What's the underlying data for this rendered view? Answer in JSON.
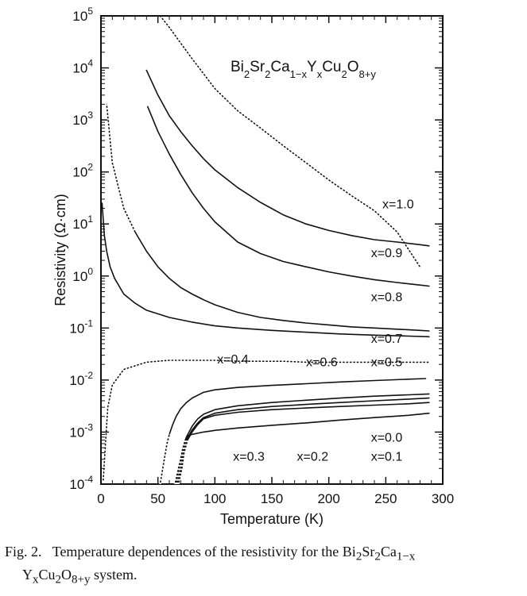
{
  "chart_data": {
    "type": "line",
    "title": "Bi2Sr2Ca1-xYxCu2O8+y",
    "title_parts": {
      "a": "Bi",
      "b": "Sr",
      "c": "Ca",
      "d": "Y",
      "e": "Cu",
      "f": "O",
      "s2": "2",
      "s1x": "1−x",
      "sx": "x",
      "s8y": "8+y"
    },
    "xlabel": "Temperature (K)",
    "ylabel": "Resistivity (Ω·cm)",
    "xlim": [
      0,
      300
    ],
    "ylim": [
      0.0001,
      100000
    ],
    "yscale": "log",
    "grid": false,
    "x_ticks": [
      0,
      50,
      100,
      150,
      200,
      250,
      300
    ],
    "x_tick_labels": [
      "0",
      "50",
      "100",
      "150",
      "200",
      "250",
      "300"
    ],
    "y_ticks": [
      {
        "base": "10",
        "exp": "-4"
      },
      {
        "base": "10",
        "exp": "-3"
      },
      {
        "base": "10",
        "exp": "-2"
      },
      {
        "base": "10",
        "exp": "-1"
      },
      {
        "base": "10",
        "exp": "0"
      },
      {
        "base": "10",
        "exp": "1"
      },
      {
        "base": "10",
        "exp": "2"
      },
      {
        "base": "10",
        "exp": "3"
      },
      {
        "base": "10",
        "exp": "4"
      },
      {
        "base": "10",
        "exp": "5"
      }
    ],
    "series": [
      {
        "name": "x=1.0",
        "style": "dotted",
        "x": [
          52,
          60,
          70,
          80,
          100,
          120,
          140,
          160,
          180,
          200,
          220,
          240,
          260,
          280
        ],
        "y": [
          100000,
          60000,
          30000,
          15000,
          4000,
          1500,
          700,
          320,
          150,
          70,
          35,
          18,
          7,
          1.5
        ]
      },
      {
        "name": "x=0.9",
        "style": "solid",
        "x": [
          40,
          50,
          60,
          70,
          80,
          90,
          100,
          120,
          140,
          160,
          180,
          200,
          220,
          240,
          260,
          280,
          288
        ],
        "y": [
          9000,
          3000,
          1200,
          600,
          320,
          180,
          110,
          50,
          26,
          15,
          10,
          7.5,
          6,
          5,
          4.5,
          4,
          3.8
        ]
      },
      {
        "name": "x=0.8",
        "style": "solid",
        "x": [
          41,
          50,
          60,
          70,
          80,
          90,
          100,
          120,
          140,
          160,
          180,
          200,
          220,
          240,
          260,
          280,
          288
        ],
        "y": [
          1800,
          600,
          220,
          90,
          40,
          20,
          11,
          4.5,
          2.7,
          1.9,
          1.5,
          1.2,
          1.0,
          0.85,
          0.75,
          0.67,
          0.64
        ]
      },
      {
        "name": "x=0.7",
        "style": "dotted-solid",
        "x": [
          5,
          10,
          20,
          30,
          40,
          50,
          60,
          70,
          80,
          90,
          100,
          120,
          140,
          160,
          180,
          200,
          220,
          240,
          260,
          280,
          288
        ],
        "y": [
          2000,
          150,
          20,
          7,
          3,
          1.5,
          0.9,
          0.6,
          0.45,
          0.35,
          0.28,
          0.2,
          0.16,
          0.14,
          0.125,
          0.115,
          0.105,
          0.1,
          0.095,
          0.09,
          0.088
        ]
      },
      {
        "name": "x=0.6",
        "style": "solid",
        "x": [
          1,
          2,
          3,
          5,
          8,
          12,
          20,
          30,
          40,
          60,
          80,
          100,
          120,
          150,
          180,
          210,
          240,
          270,
          288
        ],
        "y": [
          25,
          12,
          6,
          3,
          1.5,
          0.9,
          0.45,
          0.3,
          0.22,
          0.16,
          0.13,
          0.11,
          0.1,
          0.09,
          0.083,
          0.077,
          0.073,
          0.07,
          0.068
        ]
      },
      {
        "name": "x=0.5",
        "style": "dotted",
        "x": [
          2,
          4,
          6,
          10,
          20,
          40,
          60,
          80,
          100,
          120,
          140,
          160,
          180,
          200,
          220,
          240,
          260,
          288
        ],
        "y": [
          0.00012,
          0.0006,
          0.003,
          0.008,
          0.016,
          0.022,
          0.024,
          0.024,
          0.024,
          0.023,
          0.023,
          0.023,
          0.022,
          0.022,
          0.022,
          0.022,
          0.022,
          0.022
        ]
      },
      {
        "name": "x=0.4",
        "style": "dotted-solid",
        "x": [
          52,
          55,
          58,
          60,
          63,
          66,
          70,
          75,
          80,
          90,
          100,
          120,
          150,
          180,
          210,
          240,
          270,
          285
        ],
        "y": [
          0.0001,
          0.00025,
          0.0006,
          0.0009,
          0.0014,
          0.002,
          0.0028,
          0.0037,
          0.0045,
          0.0058,
          0.0065,
          0.0072,
          0.0079,
          0.0085,
          0.0092,
          0.0098,
          0.0104,
          0.0107
        ]
      },
      {
        "name": "x=0.3",
        "style": "dotted-solid",
        "x": [
          65,
          68,
          70,
          72,
          75,
          80,
          85,
          90,
          100,
          120,
          150,
          180,
          210,
          240,
          270,
          288
        ],
        "y": [
          0.0001,
          0.0002,
          0.0003,
          0.0005,
          0.0008,
          0.0013,
          0.0018,
          0.0022,
          0.0027,
          0.0032,
          0.0037,
          0.0041,
          0.0045,
          0.0049,
          0.0052,
          0.0054
        ]
      },
      {
        "name": "x=0.2",
        "style": "dotted-solid",
        "x": [
          67,
          70,
          72,
          75,
          80,
          85,
          90,
          100,
          120,
          150,
          180,
          210,
          240,
          270,
          288
        ],
        "y": [
          0.0001,
          0.0002,
          0.0004,
          0.0007,
          0.0011,
          0.0015,
          0.0019,
          0.0023,
          0.0027,
          0.0031,
          0.0034,
          0.0037,
          0.004,
          0.0043,
          0.0045
        ]
      },
      {
        "name": "x=0.0",
        "style": "dotted-solid",
        "x": [
          68,
          71,
          73,
          76,
          80,
          85,
          90,
          100,
          120,
          150,
          180,
          210,
          240,
          270,
          288
        ],
        "y": [
          0.0001,
          0.0002,
          0.0004,
          0.0007,
          0.001,
          0.0014,
          0.0018,
          0.0021,
          0.0024,
          0.0027,
          0.0029,
          0.0031,
          0.0033,
          0.0035,
          0.0037
        ]
      },
      {
        "name": "x=0.1",
        "style": "dotted-solid",
        "x": [
          66,
          70,
          72,
          74,
          76,
          80,
          90,
          100,
          120,
          150,
          180,
          210,
          240,
          270,
          288
        ],
        "y": [
          0.0001,
          0.0003,
          0.0005,
          0.0007,
          0.00085,
          0.0009,
          0.001,
          0.00108,
          0.0012,
          0.00135,
          0.0015,
          0.0017,
          0.0019,
          0.0021,
          0.0023
        ]
      }
    ],
    "labels": [
      {
        "text": "x=1.0",
        "x": 247,
        "y": 20
      },
      {
        "text": "x=0.9",
        "x": 237,
        "y": 2.3
      },
      {
        "text": "x=0.8",
        "x": 237,
        "y": 0.33
      },
      {
        "text": "x=0.7",
        "x": 237,
        "y": 0.052
      },
      {
        "text": "x=0.6",
        "x": 180,
        "y": 0.0185
      },
      {
        "text": "x=0.5",
        "x": 237,
        "y": 0.0185
      },
      {
        "text": "x=0.4",
        "x": 102,
        "y": 0.021
      },
      {
        "text": "x=0.3",
        "x": 116,
        "y": 0.00028
      },
      {
        "text": "x=0.2",
        "x": 172,
        "y": 0.00028
      },
      {
        "text": "x=0.0",
        "x": 237,
        "y": 0.00066
      },
      {
        "text": "x=0.1",
        "x": 237,
        "y": 0.00028
      }
    ]
  },
  "caption": {
    "prefix": "Fig. 2.",
    "line1": "Temperature dependences of the resistivity for the Bi",
    "line1_s1": "2",
    "line1_mid": "Sr",
    "line1_s2": "2",
    "line1_end": "Ca",
    "line1_s3": "1−x",
    "line2_a": "Y",
    "line2_sa": "x",
    "line2_b": "Cu",
    "line2_sb": "2",
    "line2_c": "O",
    "line2_sc": "8+y",
    "line2_end": " system."
  }
}
